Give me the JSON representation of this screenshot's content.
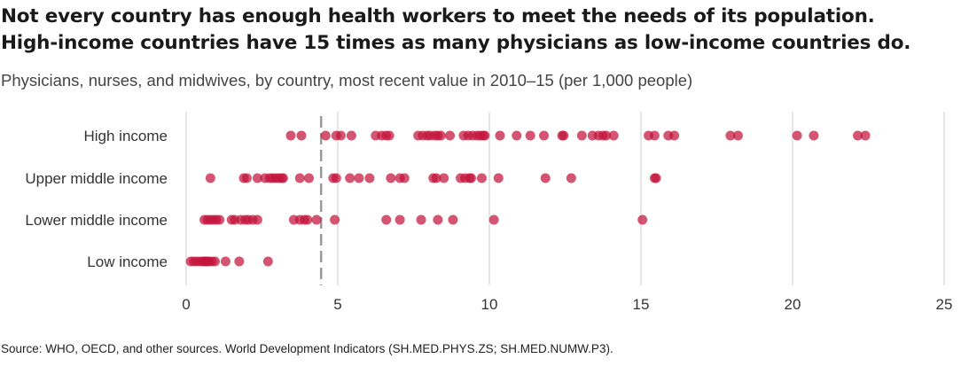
{
  "title_line1": "Not every country has enough health workers to meet the needs of its population.",
  "title_line2": "High-income countries have 15 times as many physicians as low-income countries do.",
  "subtitle": "Physicians, nurses, and midwives, by country, most recent value in 2010–15 (per 1,000 people)",
  "source": "Source: WHO, OECD, and other sources. World Development Indicators (SH.MED.PHYS.ZS; SH.MED.NUMW.P3).",
  "colors": {
    "point": "#c4143c",
    "grid": "#dddddd",
    "reference_line": "#999999",
    "text": "#333333"
  },
  "chart_data": {
    "type": "scatter",
    "categories": [
      "High income",
      "Upper middle income",
      "Lower middle income",
      "Low income"
    ],
    "xlim": [
      0,
      25
    ],
    "xticks": [
      0,
      5,
      10,
      15,
      20,
      25
    ],
    "xtick_labels": [
      "0",
      "5",
      "10",
      "15",
      "20",
      "25"
    ],
    "grid": true,
    "reference_line_x": 4.45,
    "series": [
      {
        "values": [
          3.45,
          3.8,
          4.6,
          4.95,
          5.1,
          5.45,
          6.25,
          6.45,
          6.6,
          6.7,
          7.65,
          7.8,
          7.95,
          8.05,
          8.2,
          8.3,
          8.4,
          8.7,
          9.15,
          9.3,
          9.45,
          9.6,
          9.7,
          9.8,
          9.85,
          10.35,
          10.9,
          11.35,
          11.8,
          12.4,
          12.45,
          13.05,
          13.4,
          13.6,
          13.75,
          13.85,
          14.1,
          15.25,
          15.45,
          15.9,
          16.1,
          17.95,
          18.2,
          20.15,
          20.7,
          22.15,
          22.4
        ]
      },
      {
        "values": [
          0.8,
          1.9,
          2.0,
          2.35,
          2.6,
          2.75,
          2.85,
          2.95,
          3.05,
          3.15,
          3.2,
          3.75,
          4.05,
          4.85,
          4.95,
          5.4,
          5.7,
          6.05,
          6.75,
          7.05,
          7.2,
          8.15,
          8.25,
          8.5,
          9.05,
          9.2,
          9.35,
          9.4,
          9.75,
          10.3,
          11.85,
          12.7,
          15.45,
          15.5
        ]
      },
      {
        "values": [
          0.6,
          0.7,
          0.8,
          0.9,
          1.0,
          1.1,
          1.5,
          1.6,
          1.8,
          1.95,
          2.05,
          2.2,
          2.35,
          3.55,
          3.75,
          3.9,
          4.0,
          4.3,
          4.9,
          6.6,
          7.05,
          7.75,
          8.3,
          8.8,
          10.15,
          15.05
        ]
      },
      {
        "values": [
          0.15,
          0.25,
          0.35,
          0.45,
          0.55,
          0.6,
          0.65,
          0.7,
          0.75,
          0.85,
          0.95,
          1.3,
          1.75,
          2.7
        ]
      }
    ]
  }
}
